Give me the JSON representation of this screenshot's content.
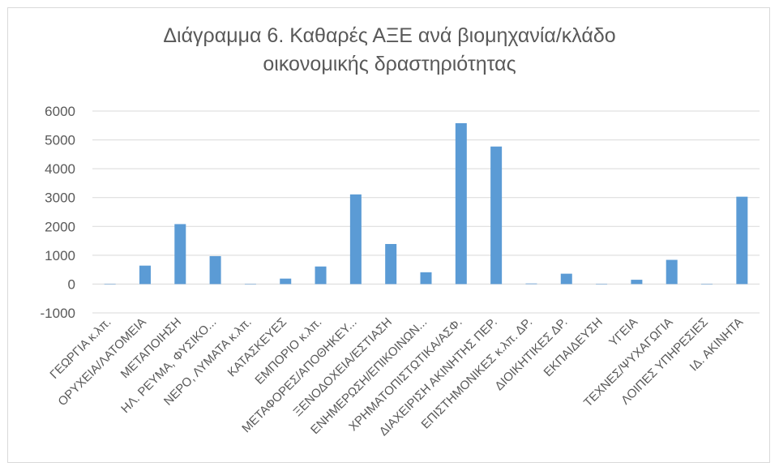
{
  "chart_data": {
    "type": "bar",
    "title_line1": "Διάγραμμα 6. Καθαρές ΑΞΕ ανά βιομηχανία/κλάδο",
    "title_line2": "οικονομικής δραστηριότητας",
    "xlabel": "",
    "ylabel": "",
    "ylim": [
      -1000,
      6000
    ],
    "yticks": [
      -1000,
      0,
      1000,
      2000,
      3000,
      4000,
      5000,
      6000
    ],
    "grid": "horizontal",
    "legend": "none",
    "bar_color": "#5b9bd5",
    "categories": [
      "ΓΕΩΡΓΙΑ κ.λπ.",
      "ΟΡΥΧΕΙΑ/ΛΑΤΟΜΕΙΑ",
      "ΜΕΤΑΠΟΙΗΣΗ",
      "ΗΛ. ΡΕΥΜΑ, ΦΥΣΙΚΟ...",
      "ΝΕΡΟ, ΛΥΜΑΤΑ κ.λπ.",
      "ΚΑΤΑΣΚΕΥΕΣ",
      "ΕΜΠΟΡΙΟ κ.λπ.",
      "ΜΕΤΑΦΟΡΕΣ/ΑΠΟΘΗΚΕΥ...",
      "ΞΕΝΟΔΟΧΕΙΑ/ΕΣΤΙΑΣΗ",
      "ΕΝΗΜΕΡΩΣΗ/ΕΠΙΚΟΙΝΩΝ...",
      "ΧΡΗΜΑΤΟΠΙΣΤΩΤΙΚΑ/ΑΣΦ.",
      "ΔΙΑΧΕΙΡΙΣΗ ΑΚΙΝΗΤΗΣ ΠΕΡ.",
      "ΕΠΙΣΤΗΜΟΝΙΚΕΣ κ.λπ. ΔΡ.",
      "ΔΙΟΙΚΗΤΙΚΕΣ ΔΡ.",
      "ΕΚΠΑΙΔΕΥΣΗ",
      "ΥΓΕΙΑ",
      "ΤΕΧΝΕΣ/ΨΥΧΑΓΩΓΙΑ",
      "ΛΟΙΠΕΣ ΥΠΗΡΕΣΙΕΣ",
      "ΙΔ. ΑΚΙΝΗΤΑ"
    ],
    "values": [
      0,
      640,
      2080,
      970,
      0,
      190,
      610,
      3110,
      1390,
      410,
      5580,
      4770,
      20,
      360,
      0,
      150,
      840,
      0,
      3030
    ]
  }
}
